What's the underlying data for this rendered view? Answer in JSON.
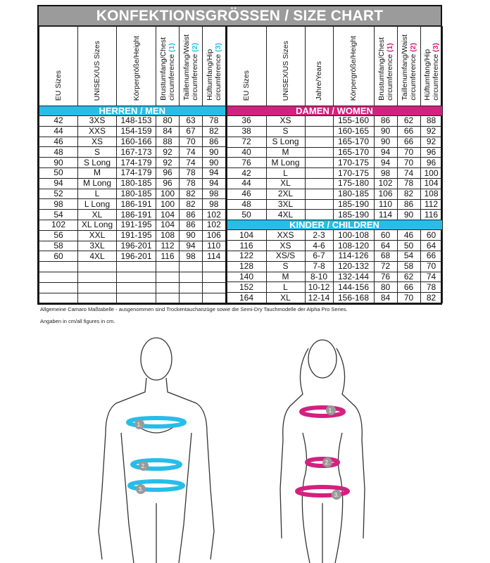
{
  "title": "KONFEKTIONSGRÖSSEN / SIZE CHART",
  "men": {
    "headers": [
      "EU Sizes",
      "UNISEX/US Sizes",
      "Körpergröße/Height"
    ],
    "measure_headers": [
      {
        "a": "Brustumfang/Chest",
        "b": "circumference",
        "n": "(1)"
      },
      {
        "a": "Taillenumfang/Waist",
        "b": "circumference",
        "n": "(2)"
      },
      {
        "a": "Hüftumfang/Hip",
        "b": "circumference",
        "n": "(3)"
      }
    ],
    "section": "HERREN / MEN",
    "rows": [
      [
        "42",
        "3XS",
        "148-153",
        "80",
        "63",
        "78"
      ],
      [
        "44",
        "XXS",
        "154-159",
        "84",
        "67",
        "82"
      ],
      [
        "46",
        "XS",
        "160-166",
        "88",
        "70",
        "86"
      ],
      [
        "48",
        "S",
        "167-173",
        "92",
        "74",
        "90"
      ],
      [
        "90",
        "S Long",
        "174-179",
        "92",
        "74",
        "90"
      ],
      [
        "50",
        "M",
        "174-179",
        "96",
        "78",
        "94"
      ],
      [
        "94",
        "M Long",
        "180-185",
        "96",
        "78",
        "94"
      ],
      [
        "52",
        "L",
        "180-185",
        "100",
        "82",
        "98"
      ],
      [
        "98",
        "L Long",
        "186-191",
        "100",
        "82",
        "98"
      ],
      [
        "54",
        "XL",
        "186-191",
        "104",
        "86",
        "102"
      ],
      [
        "102",
        "XL Long",
        "191-195",
        "104",
        "86",
        "102"
      ],
      [
        "56",
        "XXL",
        "191-195",
        "108",
        "90",
        "106"
      ],
      [
        "58",
        "3XL",
        "196-201",
        "112",
        "94",
        "110"
      ],
      [
        "60",
        "4XL",
        "196-201",
        "116",
        "98",
        "114"
      ],
      [
        "",
        "",
        "",
        "",
        "",
        ""
      ],
      [
        "",
        "",
        "",
        "",
        "",
        ""
      ],
      [
        "",
        "",
        "",
        "",
        "",
        ""
      ],
      [
        "",
        "",
        "",
        "",
        "",
        ""
      ]
    ]
  },
  "women": {
    "headers": [
      "EU Sizes",
      "UNISEX/US Sizes",
      "Jahre/Years",
      "Körpergröße/Height"
    ],
    "measure_headers": [
      {
        "a": "Brustumfang/Chest",
        "b": "circumference",
        "n": "(1)"
      },
      {
        "a": "Taillenumfang/Waist",
        "b": "circumference",
        "n": "(2)"
      },
      {
        "a": "Hüftumfang/Hip",
        "b": "circumference",
        "n": "(3)"
      }
    ],
    "section": "DAMEN / WOMEN",
    "rows": [
      [
        "36",
        "XS",
        "",
        "155-160",
        "86",
        "62",
        "88"
      ],
      [
        "38",
        "S",
        "",
        "160-165",
        "90",
        "66",
        "92"
      ],
      [
        "72",
        "S Long",
        "",
        "165-170",
        "90",
        "66",
        "92"
      ],
      [
        "40",
        "M",
        "",
        "165-170",
        "94",
        "70",
        "96"
      ],
      [
        "76",
        "M Long",
        "",
        "170-175",
        "94",
        "70",
        "96"
      ],
      [
        "42",
        "L",
        "",
        "170-175",
        "98",
        "74",
        "100"
      ],
      [
        "44",
        "XL",
        "",
        "175-180",
        "102",
        "78",
        "104"
      ],
      [
        "46",
        "2XL",
        "",
        "180-185",
        "106",
        "82",
        "108"
      ],
      [
        "48",
        "3XL",
        "",
        "185-190",
        "110",
        "86",
        "112"
      ],
      [
        "50",
        "4XL",
        "",
        "185-190",
        "114",
        "90",
        "116"
      ]
    ]
  },
  "children": {
    "section": "KINDER / CHILDREN",
    "rows": [
      [
        "104",
        "XXS",
        "2-3",
        "100-108",
        "60",
        "46",
        "60"
      ],
      [
        "116",
        "XS",
        "4-6",
        "108-120",
        "64",
        "50",
        "64"
      ],
      [
        "122",
        "XS/S",
        "6-7",
        "114-126",
        "68",
        "54",
        "66"
      ],
      [
        "128",
        "S",
        "7-8",
        "120-132",
        "72",
        "58",
        "70"
      ],
      [
        "140",
        "M",
        "8-10",
        "132-144",
        "76",
        "62",
        "74"
      ],
      [
        "152",
        "L",
        "10-12",
        "144-156",
        "80",
        "66",
        "78"
      ],
      [
        "164",
        "XL",
        "12-14",
        "156-168",
        "84",
        "70",
        "82"
      ]
    ]
  },
  "notes": [
    "Allgemeine Camaro Maßtabelle - ausgenommen sind Trockentauchanzüge sowie die Semi-Dry Tauchmodelle der Alpha Pro Series.",
    "Angaben in cm/all figures in cm."
  ],
  "figures": {
    "markers": [
      "1.",
      "2.",
      "3."
    ]
  },
  "colors": {
    "men_accent": "#27bde8",
    "women_accent": "#d4207f",
    "title_bg": "#9b9b9b"
  }
}
